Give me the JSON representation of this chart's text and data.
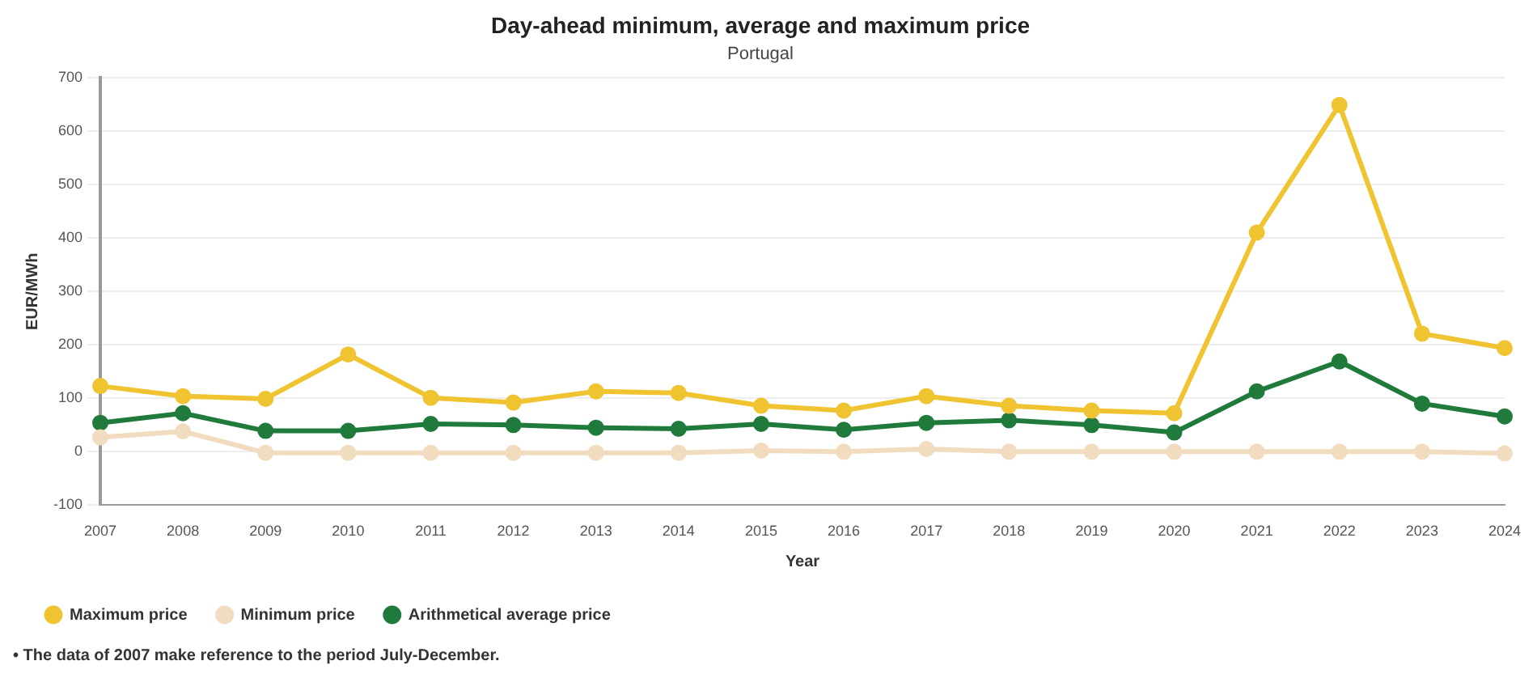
{
  "chart_data": {
    "type": "line",
    "title": "Day-ahead minimum, average and maximum price",
    "subtitle": "Portugal",
    "xlabel": "Year",
    "ylabel": "EUR/MWh",
    "categories": [
      "2007",
      "2008",
      "2009",
      "2010",
      "2011",
      "2012",
      "2013",
      "2014",
      "2015",
      "2016",
      "2017",
      "2018",
      "2019",
      "2020",
      "2021",
      "2022",
      "2023",
      "2024"
    ],
    "series": [
      {
        "name": "Maximum price",
        "color": "#f0c330",
        "values": [
          123,
          104,
          99,
          182,
          101,
          92,
          113,
          110,
          86,
          77,
          104,
          86,
          77,
          72,
          410,
          649,
          221,
          194
        ]
      },
      {
        "name": "Minimum price",
        "color": "#f2dcc0",
        "values": [
          27,
          38,
          -2,
          -2,
          -2,
          -2,
          -2,
          -2,
          2,
          0,
          5,
          0,
          0,
          0,
          0,
          0,
          0,
          -3
        ]
      },
      {
        "name": "Arithmetical average price",
        "color": "#1f7a3c",
        "values": [
          54,
          72,
          39,
          39,
          52,
          50,
          45,
          43,
          52,
          41,
          54,
          59,
          50,
          36,
          113,
          169,
          90,
          66
        ]
      }
    ],
    "ylim": [
      -100,
      700
    ],
    "yticks": [
      -100,
      0,
      100,
      200,
      300,
      400,
      500,
      600,
      700
    ],
    "grid": "y",
    "legend": "bottom left",
    "marker": "circle",
    "line_style": "solid",
    "annotations": [
      "• The data of 2007 make reference to the period July-December."
    ]
  }
}
